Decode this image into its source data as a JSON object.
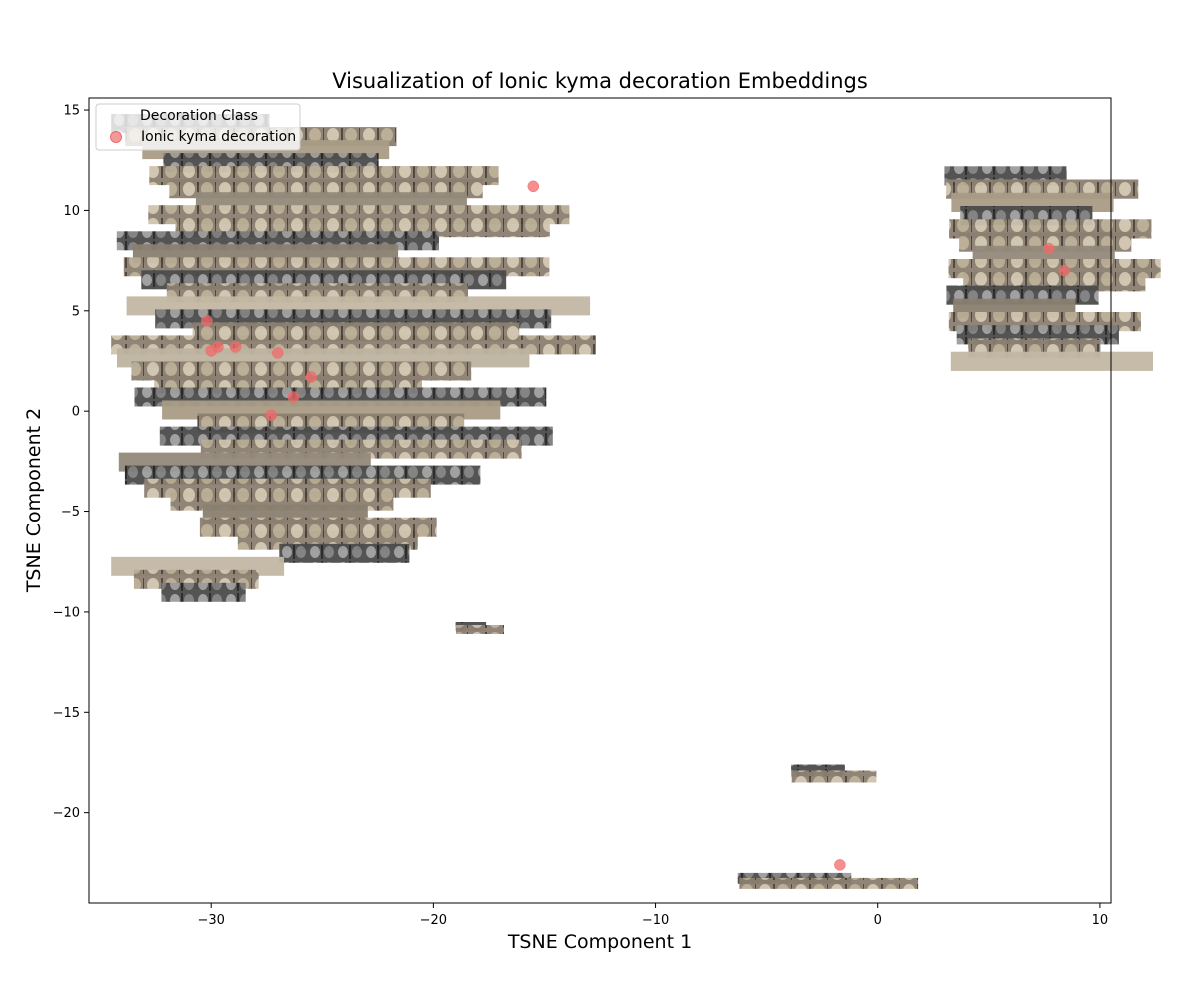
{
  "chart_data": {
    "type": "scatter",
    "title": "Visualization of Ionic kyma decoration Embeddings",
    "xlabel": "TSNE Component 1",
    "ylabel": "TSNE Component 2",
    "xlim": [
      -35.5,
      10.5
    ],
    "ylim": [
      -24.5,
      15.6
    ],
    "xticks": [
      -30,
      -20,
      -10,
      0,
      10
    ],
    "yticks": [
      15,
      10,
      5,
      0,
      -5,
      -10,
      -15,
      -20
    ],
    "xtick_labels": [
      "−30",
      "−20",
      "−10",
      "0",
      "10"
    ],
    "ytick_labels": [
      "15",
      "10",
      "5",
      "0",
      "−5",
      "−10",
      "−15",
      "−20"
    ],
    "grid": false,
    "legend": {
      "title": "Decoration Class",
      "location": "upper-left",
      "entries": [
        {
          "label": "Ionic kyma decoration",
          "color": "#f08080"
        }
      ]
    },
    "series": [
      {
        "name": "Ionic kyma decoration",
        "color": "#f26a6a",
        "points": [
          {
            "x": -30.0,
            "y": 3.0
          },
          {
            "x": -29.7,
            "y": 3.2
          },
          {
            "x": -28.9,
            "y": 3.2
          },
          {
            "x": -27.0,
            "y": 2.9
          },
          {
            "x": -25.5,
            "y": 1.7
          },
          {
            "x": -26.3,
            "y": 0.7
          },
          {
            "x": -27.3,
            "y": -0.2
          },
          {
            "x": -30.2,
            "y": 4.5
          },
          {
            "x": -15.5,
            "y": 11.2
          },
          {
            "x": 7.7,
            "y": 8.1
          },
          {
            "x": 8.4,
            "y": 7.0
          },
          {
            "x": -1.7,
            "y": -22.6
          }
        ]
      }
    ],
    "thumbnail_clusters": [
      {
        "x0": -34.5,
        "x1": -11.5,
        "y0": -9.2,
        "y1": 14.8
      },
      {
        "x0": -19.0,
        "x1": -16.5,
        "y0": -10.8,
        "y1": -10.5
      },
      {
        "x0": 3.0,
        "x1": 13.0,
        "y0": 2.3,
        "y1": 12.2
      },
      {
        "x0": -3.9,
        "x1": 0.5,
        "y0": -18.2,
        "y1": -17.6
      },
      {
        "x0": -6.3,
        "x1": 3.0,
        "y0": -23.5,
        "y1": -23.0
      }
    ]
  }
}
